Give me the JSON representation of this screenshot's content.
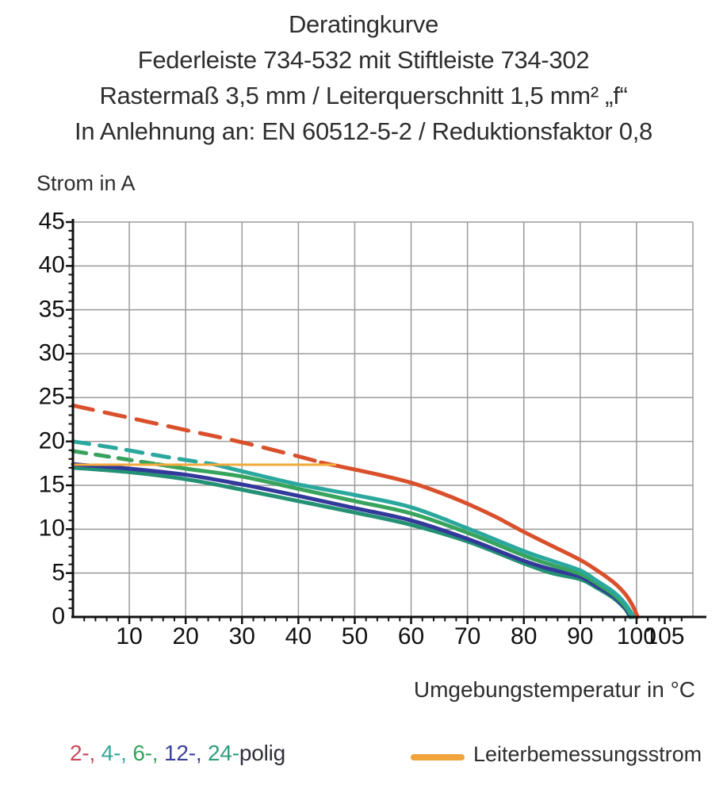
{
  "title": {
    "lines": [
      "Deratingkurve",
      "Federleiste 734-532 mit Stiftleiste 734-302",
      "Rastermaß 3,5 mm / Leiterquerschnitt 1,5 mm² „f“",
      "In Anlehnung an: EN 60512-5-2 / Reduktionsfaktor 0,8"
    ]
  },
  "chart_data": {
    "type": "line",
    "title": "Deratingkurve",
    "xlabel": "Umgebungstemperatur in °C",
    "ylabel": "Strom in A",
    "xlim": [
      0,
      110
    ],
    "ylim": [
      0,
      45
    ],
    "x_ticks": [
      10,
      20,
      30,
      40,
      50,
      60,
      70,
      80,
      90,
      100,
      105
    ],
    "y_ticks": [
      45,
      40,
      35,
      30,
      25,
      20,
      15,
      10,
      5,
      0
    ],
    "x_minor_step": 2,
    "y_minor_step": 1,
    "grid": true,
    "grid_color": "#9a9a9a",
    "axis_color": "#111111",
    "series": [
      {
        "name": "24-polig",
        "color": "#259174",
        "width": 5,
        "segments": [
          {
            "style": "solid",
            "points": [
              [
                0,
                17.0
              ],
              [
                10,
                16.5
              ],
              [
                20,
                15.7
              ],
              [
                30,
                14.5
              ],
              [
                40,
                13.2
              ],
              [
                50,
                11.9
              ],
              [
                60,
                10.5
              ],
              [
                70,
                8.6
              ],
              [
                80,
                6.1
              ],
              [
                85,
                5.0
              ],
              [
                90,
                4.3
              ],
              [
                93,
                3.3
              ],
              [
                96,
                2.1
              ],
              [
                98,
                0.9
              ],
              [
                98.8,
                0
              ]
            ]
          }
        ]
      },
      {
        "name": "12-polig",
        "color": "#32399a",
        "width": 5,
        "segments": [
          {
            "style": "solid",
            "points": [
              [
                0,
                17.4
              ],
              [
                10,
                16.9
              ],
              [
                20,
                16.2
              ],
              [
                30,
                15.1
              ],
              [
                40,
                13.8
              ],
              [
                50,
                12.4
              ],
              [
                60,
                11.0
              ],
              [
                70,
                8.9
              ],
              [
                80,
                6.4
              ],
              [
                85,
                5.4
              ],
              [
                90,
                4.6
              ],
              [
                93,
                3.5
              ],
              [
                96,
                2.3
              ],
              [
                98,
                1.0
              ],
              [
                99,
                0
              ]
            ]
          }
        ]
      },
      {
        "name": "6-polig",
        "color": "#37a35d",
        "width": 5,
        "segments": [
          {
            "style": "dashed",
            "dash": "17 12",
            "points": [
              [
                0,
                18.9
              ],
              [
                8,
                18.1
              ],
              [
                15,
                17.4
              ]
            ]
          },
          {
            "style": "solid",
            "points": [
              [
                15,
                17.4
              ],
              [
                20,
                16.9
              ],
              [
                30,
                16.0
              ],
              [
                40,
                14.6
              ],
              [
                50,
                13.2
              ],
              [
                60,
                11.8
              ],
              [
                70,
                9.6
              ],
              [
                80,
                7.0
              ],
              [
                85,
                5.9
              ],
              [
                90,
                4.9
              ],
              [
                93,
                3.8
              ],
              [
                96,
                2.5
              ],
              [
                98,
                1.2
              ],
              [
                99.2,
                0
              ]
            ]
          }
        ]
      },
      {
        "name": "4-polig",
        "color": "#2ba89e",
        "width": 5,
        "segments": [
          {
            "style": "dashed",
            "dash": "21 13",
            "points": [
              [
                0,
                20.0
              ],
              [
                8,
                19.2
              ],
              [
                16,
                18.3
              ],
              [
                25,
                17.4
              ]
            ]
          },
          {
            "style": "solid",
            "points": [
              [
                25,
                17.4
              ],
              [
                30,
                16.6
              ],
              [
                40,
                15.1
              ],
              [
                50,
                13.9
              ],
              [
                60,
                12.5
              ],
              [
                70,
                10.1
              ],
              [
                80,
                7.5
              ],
              [
                85,
                6.4
              ],
              [
                90,
                5.3
              ],
              [
                93,
                4.1
              ],
              [
                96,
                2.8
              ],
              [
                98,
                1.5
              ],
              [
                99.5,
                0
              ]
            ]
          }
        ]
      },
      {
        "name": "2-polig",
        "color": "#d9512c",
        "width": 5,
        "segments": [
          {
            "style": "dashed",
            "dash": "26 15",
            "points": [
              [
                0,
                24.1
              ],
              [
                10,
                22.7
              ],
              [
                20,
                21.3
              ],
              [
                30,
                19.9
              ],
              [
                40,
                18.3
              ],
              [
                44,
                17.6
              ]
            ]
          },
          {
            "style": "solid",
            "points": [
              [
                44,
                17.6
              ],
              [
                50,
                16.8
              ],
              [
                55,
                16.1
              ],
              [
                60,
                15.3
              ],
              [
                65,
                14.2
              ],
              [
                70,
                12.9
              ],
              [
                75,
                11.4
              ],
              [
                80,
                9.7
              ],
              [
                85,
                8.1
              ],
              [
                90,
                6.5
              ],
              [
                93,
                5.3
              ],
              [
                96,
                3.9
              ],
              [
                98,
                2.6
              ],
              [
                99.3,
                1.3
              ],
              [
                100.2,
                0
              ]
            ]
          }
        ]
      },
      {
        "name": "Leiterbemessungsstrom",
        "color": "#f2a93d",
        "width": 3,
        "segments": [
          {
            "style": "solid",
            "points": [
              [
                0,
                17.35
              ],
              [
                46.5,
                17.35
              ]
            ]
          }
        ]
      }
    ]
  },
  "legend": {
    "poles_parts": [
      {
        "text": "2-,",
        "color": "#c94a5a"
      },
      {
        "text": " 4-,",
        "color": "#36a897"
      },
      {
        "text": " 6-,",
        "color": "#37a35e"
      },
      {
        "text": " 12-,",
        "color": "#3b3f9d"
      },
      {
        "text": " 24-",
        "color": "#2d9e7b"
      },
      {
        "text": "polig",
        "color": "#2f2f38"
      }
    ],
    "rated_label": "Leiterbemessungsstrom",
    "rated_color": "#f0a43c"
  }
}
